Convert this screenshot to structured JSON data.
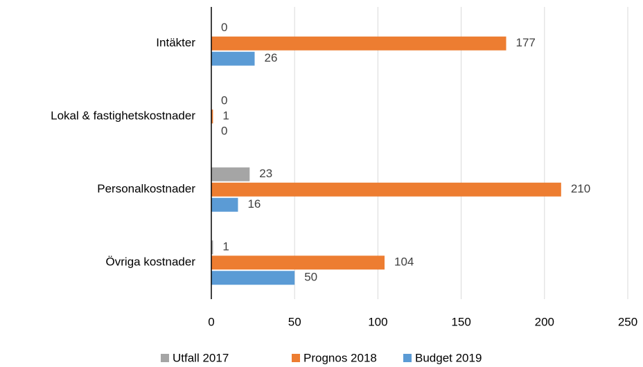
{
  "chart_data": {
    "type": "hbar",
    "categories": [
      "Intäkter",
      "Lokal & fastighetskostnader",
      "Personalkostnader",
      "Övriga kostnader"
    ],
    "series": [
      {
        "name": "Utfall 2017",
        "color": "#a5a5a5",
        "values": [
          0,
          0,
          23,
          1
        ]
      },
      {
        "name": "Prognos 2018",
        "color": "#ed7d31",
        "values": [
          177,
          1,
          210,
          104
        ]
      },
      {
        "name": "Budget 2019",
        "color": "#5b9bd5",
        "values": [
          26,
          0,
          16,
          50
        ]
      }
    ],
    "xlim": [
      0,
      250
    ],
    "xticks": [
      0,
      50,
      100,
      150,
      200,
      250
    ],
    "grid": true,
    "legend": "bottom"
  }
}
